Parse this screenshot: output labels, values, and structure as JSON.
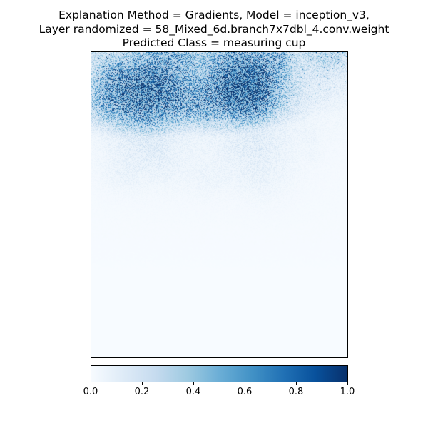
{
  "title": {
    "line1": "Explanation Method = Gradients, Model = inception_v3,",
    "line2": "Layer randomized = 58_Mixed_6d.branch7x7dbl_4.conv.weight",
    "line3": "Predicted Class = measuring cup"
  },
  "chart_data": {
    "type": "heatmap",
    "title": "Explanation Method = Gradients, Model = inception_v3,\nLayer randomized = 58_Mixed_6d.branch7x7dbl_4.conv.weight\nPredicted Class = measuring cup",
    "colormap": "Blues",
    "value_range": [
      0.0,
      1.0
    ],
    "colorbar": {
      "orientation": "horizontal",
      "ticks": [
        0.0,
        0.2,
        0.4,
        0.6,
        0.8,
        1.0
      ],
      "tick_labels": [
        "0.0",
        "0.2",
        "0.4",
        "0.6",
        "0.8",
        "1.0"
      ]
    },
    "axes_ticks_visible": false,
    "description_of_intensity": "highest attribution in upper-left/top-center region, fading toward lower area"
  }
}
